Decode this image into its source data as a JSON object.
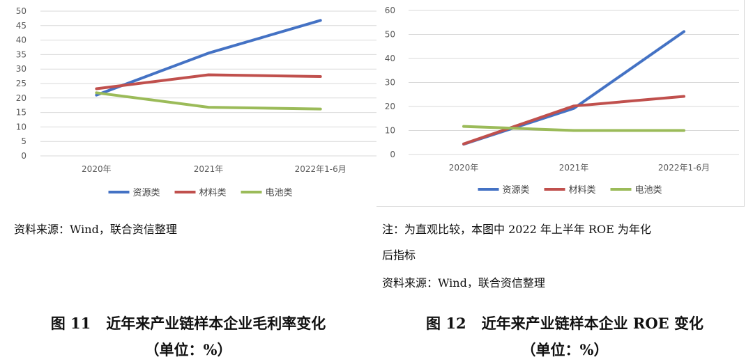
{
  "chart_data": [
    {
      "type": "line",
      "categories": [
        "2020年",
        "2021年",
        "2022年1-6月"
      ],
      "ylim": [
        0,
        50
      ],
      "yticks": [
        0,
        5,
        10,
        15,
        20,
        25,
        30,
        35,
        40,
        45,
        50
      ],
      "grid": "horizontal",
      "legend": "bottom",
      "series": [
        {
          "name": "资源类",
          "color": "#4472C4",
          "values": [
            21,
            35.5,
            46.8
          ]
        },
        {
          "name": "材料类",
          "color": "#C0504D",
          "values": [
            23.2,
            28,
            27.4
          ]
        },
        {
          "name": "电池类",
          "color": "#9BBB59",
          "values": [
            21.8,
            16.8,
            16.2
          ]
        }
      ]
    },
    {
      "type": "line",
      "categories": [
        "2020年",
        "2021年",
        "2022年1-6月"
      ],
      "ylim": [
        0,
        60
      ],
      "yticks": [
        0,
        10,
        20,
        30,
        40,
        50,
        60
      ],
      "grid": "horizontal",
      "legend": "bottom",
      "series": [
        {
          "name": "资源类",
          "color": "#4472C4",
          "values": [
            4.3,
            19.2,
            51.2
          ]
        },
        {
          "name": "材料类",
          "color": "#C0504D",
          "values": [
            4.4,
            20.2,
            24.2
          ]
        },
        {
          "name": "电池类",
          "color": "#9BBB59",
          "values": [
            11.7,
            10,
            10
          ]
        }
      ]
    }
  ],
  "left_panel": {
    "source": "资料来源：Wind，联合资信整理",
    "figure_number": "图 11",
    "figure_title": "近年来产业链样本企业毛利率变化",
    "figure_unit": "（单位：%）"
  },
  "right_panel": {
    "note_line1": "注：为直观比较，本图中 2022 年上半年 ROE 为年化",
    "note_line2": "后指标",
    "source": "资料来源：Wind，联合资信整理",
    "figure_number": "图 12",
    "figure_title": "近年来产业链样本企业 ROE 变化",
    "figure_unit": "（单位：%）"
  }
}
